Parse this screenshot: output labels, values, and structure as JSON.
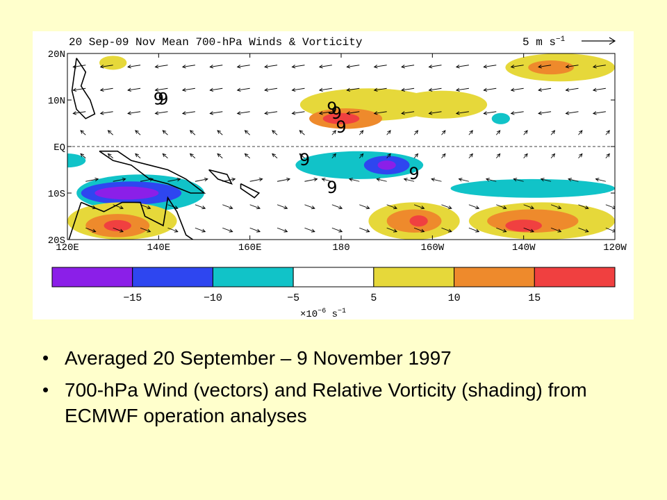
{
  "slide": {
    "background": "#FFFFCC",
    "bullets": [
      "Averaged 20 September – 9 November 1997",
      "700-hPa Wind (vectors) and Relative Vorticity (shading)  from ECMWF operation analyses"
    ]
  },
  "chart_data": {
    "type": "heatmap",
    "title": "20 Sep-09 Nov Mean 700-hPa Winds & Vorticity",
    "reference_vector": {
      "label": "5 m s",
      "superscript": "−1",
      "value": 5
    },
    "x_ticks": [
      "120E",
      "140E",
      "160E",
      "180",
      "160W",
      "140W",
      "120W"
    ],
    "x_tick_values": [
      120,
      140,
      160,
      180,
      200,
      220,
      240
    ],
    "y_ticks": [
      "20N",
      "10N",
      "EQ",
      "10S",
      "20S"
    ],
    "y_tick_values": [
      20,
      10,
      0,
      -10,
      -20
    ],
    "xlim": [
      120,
      240
    ],
    "ylim": [
      -20,
      20
    ],
    "equator_line": "dashed",
    "cyclone_symbols": [
      {
        "lon": 178,
        "lat": 7
      },
      {
        "lon": 179,
        "lat": 6
      },
      {
        "lon": 180,
        "lat": 3
      },
      {
        "lon": 140,
        "lat": 9
      },
      {
        "lon": 172,
        "lat": -4
      },
      {
        "lon": 178,
        "lat": -10
      },
      {
        "lon": 196,
        "lat": -7
      },
      {
        "lon": 141,
        "lat": 9
      }
    ],
    "vorticity_regions": [
      {
        "level": 5,
        "lon": 186,
        "lat": 9,
        "rx": 15,
        "ry": 3.5
      },
      {
        "level": 10,
        "lon": 181,
        "lat": 6,
        "rx": 8,
        "ry": 2.2
      },
      {
        "level": 15,
        "lon": 180,
        "lat": 6,
        "rx": 4,
        "ry": 1.2
      },
      {
        "level": 5,
        "lon": 202,
        "lat": 9,
        "rx": 10,
        "ry": 3
      },
      {
        "level": 5,
        "lon": 228,
        "lat": 17,
        "rx": 12,
        "ry": 3
      },
      {
        "level": 10,
        "lon": 226,
        "lat": 17,
        "rx": 5,
        "ry": 1.5
      },
      {
        "level": -5,
        "lon": 184,
        "lat": -4,
        "rx": 14,
        "ry": 3
      },
      {
        "level": -10,
        "lon": 190,
        "lat": -4,
        "rx": 5,
        "ry": 2
      },
      {
        "level": -15,
        "lon": 190,
        "lat": -4,
        "rx": 2,
        "ry": 1
      },
      {
        "level": -5,
        "lon": 222,
        "lat": -9,
        "rx": 18,
        "ry": 2
      },
      {
        "level": -5,
        "lon": 215,
        "lat": 6,
        "rx": 2,
        "ry": 1.2
      },
      {
        "level": -5,
        "lon": 136,
        "lat": -10,
        "rx": 14,
        "ry": 4
      },
      {
        "level": -10,
        "lon": 134,
        "lat": -10,
        "rx": 11,
        "ry": 2.5
      },
      {
        "level": -15,
        "lon": 133,
        "lat": -10,
        "rx": 7,
        "ry": 1.4
      },
      {
        "level": 5,
        "lon": 132,
        "lat": -16,
        "rx": 12,
        "ry": 4
      },
      {
        "level": 10,
        "lon": 131,
        "lat": -17,
        "rx": 7,
        "ry": 2.5
      },
      {
        "level": 15,
        "lon": 131,
        "lat": -17,
        "rx": 3,
        "ry": 1.2
      },
      {
        "level": 5,
        "lon": 196,
        "lat": -16,
        "rx": 10,
        "ry": 4
      },
      {
        "level": 10,
        "lon": 196,
        "lat": -16,
        "rx": 6,
        "ry": 2.5
      },
      {
        "level": 15,
        "lon": 197,
        "lat": -16,
        "rx": 2,
        "ry": 1.2
      },
      {
        "level": 5,
        "lon": 224,
        "lat": -16,
        "rx": 16,
        "ry": 4
      },
      {
        "level": 10,
        "lon": 222,
        "lat": -16,
        "rx": 10,
        "ry": 2.5
      },
      {
        "level": 15,
        "lon": 220,
        "lat": -17,
        "rx": 4,
        "ry": 1.3
      },
      {
        "level": 5,
        "lon": 130,
        "lat": 18,
        "rx": 3,
        "ry": 1.5
      },
      {
        "level": -5,
        "lon": 120,
        "lat": -3,
        "rx": 4,
        "ry": 1.5
      }
    ],
    "colorbar": {
      "boundaries": [
        "−15",
        "−10",
        "−5",
        "5",
        "10",
        "15"
      ],
      "colors": [
        "#8B1FE8",
        "#2E46F0",
        "#11C3C8",
        "#FFFFFF",
        "#E6D83A",
        "#EE8A2C",
        "#F04040"
      ],
      "units_prefix": "×10",
      "units_exponent": "−6",
      "units_suffix": " s",
      "units_suffix_exponent": "−1"
    }
  }
}
